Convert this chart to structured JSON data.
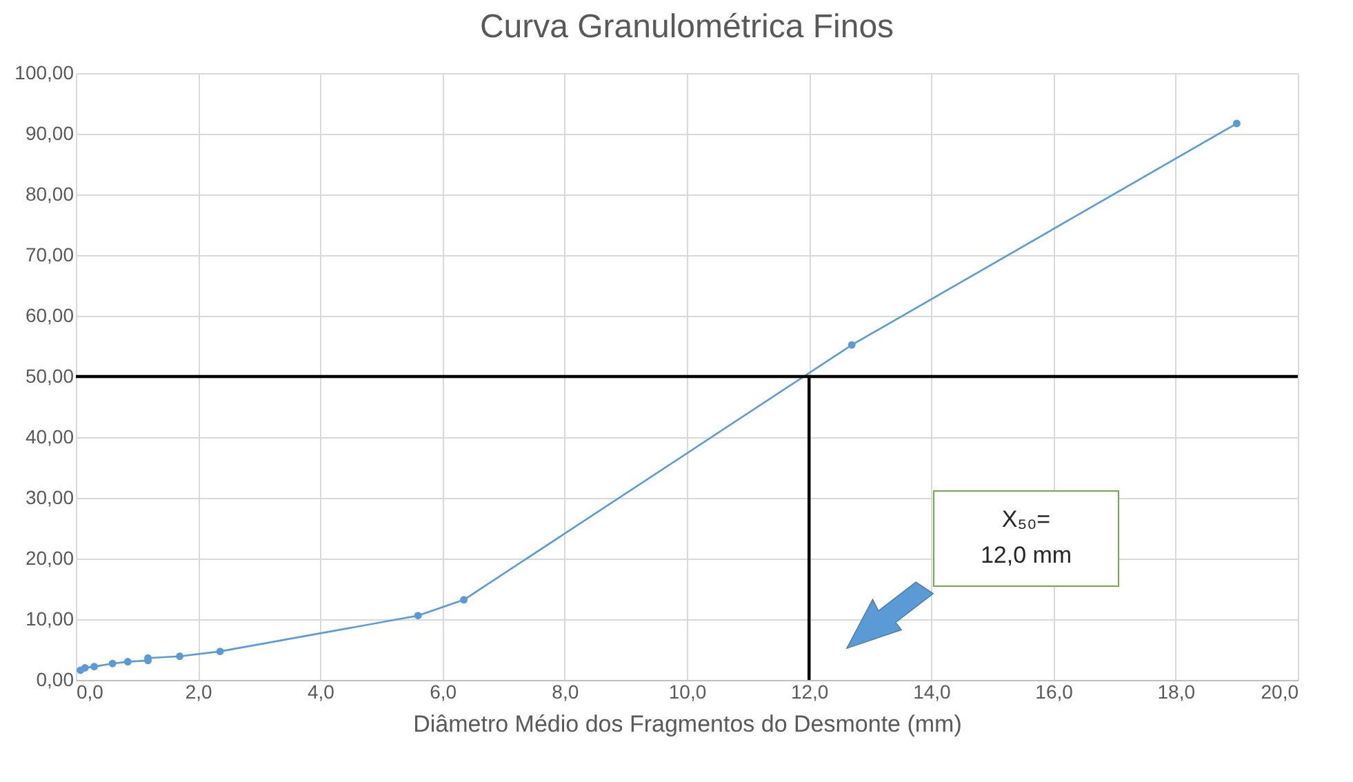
{
  "chart_data": {
    "type": "line",
    "title": "Curva Granulométrica Finos",
    "xlabel": "Diâmetro Médio dos Fragmentos do Desmonte (mm)",
    "xlim": [
      0,
      20
    ],
    "xticks": [
      {
        "value": 0,
        "label": "0,0"
      },
      {
        "value": 2,
        "label": "2,0"
      },
      {
        "value": 4,
        "label": "4,0"
      },
      {
        "value": 6,
        "label": "6,0"
      },
      {
        "value": 8,
        "label": "8,0"
      },
      {
        "value": 10,
        "label": "10,0"
      },
      {
        "value": 12,
        "label": "12,0"
      },
      {
        "value": 14,
        "label": "14,0"
      },
      {
        "value": 16,
        "label": "16,0"
      },
      {
        "value": 18,
        "label": "18,0"
      },
      {
        "value": 20,
        "label": "20,0"
      }
    ],
    "ylim": [
      0,
      100
    ],
    "yticks": [
      {
        "value": 0,
        "label": "0,00"
      },
      {
        "value": 10,
        "label": "10,00"
      },
      {
        "value": 20,
        "label": "20,00"
      },
      {
        "value": 30,
        "label": "30,00"
      },
      {
        "value": 40,
        "label": "40,00"
      },
      {
        "value": 50,
        "label": "50,00"
      },
      {
        "value": 60,
        "label": "60,00"
      },
      {
        "value": 70,
        "label": "70,00"
      },
      {
        "value": 80,
        "label": "80,00"
      },
      {
        "value": 90,
        "label": "90,00"
      },
      {
        "value": 100,
        "label": "100,00"
      }
    ],
    "grid": true,
    "marker": "circle",
    "line_style": "solid",
    "series": [
      {
        "color": "#5b9bd5",
        "x": [
          0.075,
          0.15,
          0.3,
          0.6,
          0.85,
          1.18,
          1.18,
          1.7,
          2.36,
          5.6,
          6.35,
          12.7,
          19.0
        ],
        "values": [
          1.6,
          2.0,
          2.2,
          2.7,
          3.0,
          3.2,
          3.6,
          3.9,
          4.7,
          10.6,
          13.2,
          55.2,
          91.7
        ]
      },
      {
        "type": "line",
        "color": "#000000",
        "marker": "none",
        "x": [
          12,
          12
        ],
        "values": [
          0,
          50
        ]
      }
    ],
    "ref_lines": [
      {
        "axis": "y",
        "value": 50,
        "color": "#000000"
      }
    ],
    "annotations": [
      "X₅₀=\n12,0 mm"
    ]
  }
}
